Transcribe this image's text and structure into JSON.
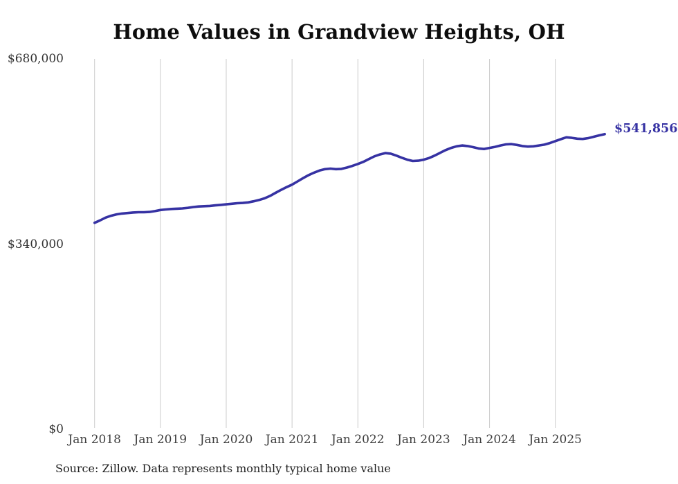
{
  "page": {
    "background": "#ffffff"
  },
  "chart_data": {
    "type": "line",
    "title": "Home Values in Grandview Heights, OH",
    "source_note": "Source: Zillow. Data represents monthly typical home value",
    "series_name": "Typical home value",
    "frequency": "monthly",
    "x_start": "Jan 2018",
    "x_end": "Oct 2025",
    "x_tick_labels": [
      "Jan 2018",
      "Jan 2019",
      "Jan 2020",
      "Jan 2021",
      "Jan 2022",
      "Jan 2023",
      "Jan 2024",
      "Jan 2025"
    ],
    "x_tick_month_interval": 12,
    "y_ticks": [
      {
        "label": "$0",
        "value": 0
      },
      {
        "label": "$340,000",
        "value": 340000
      },
      {
        "label": "$680,000",
        "value": 680000
      }
    ],
    "y_max": 680000,
    "grid": "vertical-only",
    "legend": "none",
    "end_label": "$541,856",
    "last_value": 541856,
    "line_color": "#3632a3",
    "grid_color": "#cbcbcb",
    "values": [
      379000,
      383500,
      388500,
      392000,
      394500,
      396000,
      397000,
      398000,
      398500,
      398500,
      399000,
      400500,
      402500,
      403500,
      404500,
      405000,
      405500,
      406500,
      408000,
      409000,
      409500,
      410000,
      411000,
      412000,
      413000,
      414000,
      415000,
      415500,
      416500,
      418500,
      421000,
      424000,
      428500,
      434000,
      439500,
      444500,
      449000,
      455000,
      461000,
      466500,
      471000,
      475000,
      477500,
      478500,
      477500,
      478000,
      480500,
      483500,
      487000,
      491000,
      496000,
      501000,
      504500,
      507000,
      506000,
      502500,
      498500,
      495000,
      492500,
      493000,
      495000,
      498000,
      502500,
      507500,
      512500,
      516500,
      519500,
      521000,
      520000,
      518000,
      515500,
      514500,
      516500,
      518500,
      521000,
      523000,
      523500,
      522000,
      520000,
      519000,
      519500,
      521000,
      522500,
      525500,
      529000,
      532500,
      536000,
      535000,
      533500,
      533000,
      534500,
      537000,
      539500,
      541856
    ]
  }
}
